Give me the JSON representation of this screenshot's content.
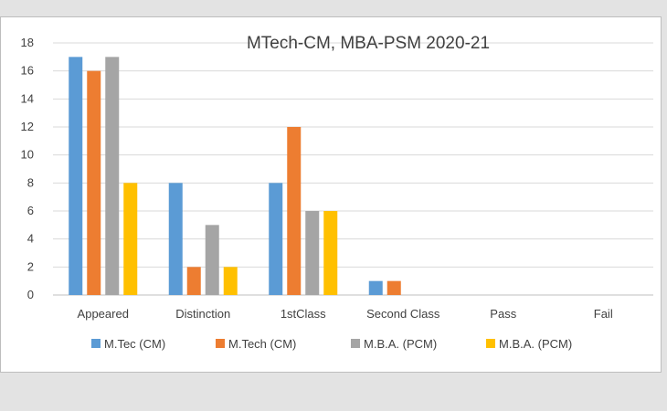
{
  "chart_data": {
    "type": "bar",
    "title": "MTech-CM, MBA-PSM 2020-21",
    "xlabel": "",
    "ylabel": "",
    "ylim": [
      0,
      18
    ],
    "yticks": [
      0,
      2,
      4,
      6,
      8,
      10,
      12,
      14,
      16,
      18
    ],
    "grid": true,
    "legend_position": "bottom",
    "categories": [
      "Appeared",
      "Distinction",
      "1stClass",
      "Second Class",
      "Pass",
      "Fail"
    ],
    "series": [
      {
        "name": "M.Tec (CM)",
        "color": "#5b9bd5",
        "values": [
          17,
          8,
          8,
          1,
          null,
          null
        ]
      },
      {
        "name": "M.Tech (CM)",
        "color": "#ed7d31",
        "values": [
          16,
          2,
          12,
          1,
          null,
          null
        ]
      },
      {
        "name": "M.B.A. (PCM)",
        "color": "#a5a5a5",
        "values": [
          17,
          5,
          6,
          null,
          null,
          null
        ]
      },
      {
        "name": "M.B.A. (PCM)",
        "color": "#ffc000",
        "values": [
          8,
          2,
          6,
          null,
          null,
          null
        ]
      }
    ]
  }
}
